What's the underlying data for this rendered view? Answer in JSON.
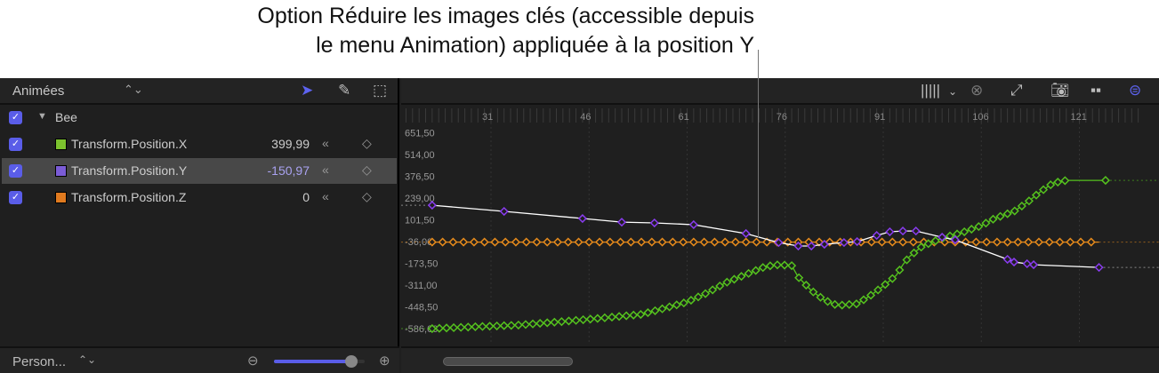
{
  "callout": {
    "line1": "Option Réduire les images clés (accessible depuis",
    "line2": "le menu Animation) appliquée à la position Y"
  },
  "left_panel": {
    "filter": "Animées",
    "tools": [
      "arrow-icon",
      "pencil-icon",
      "marquee-add-icon"
    ],
    "group": {
      "label": "Bee",
      "checked": true
    },
    "params": [
      {
        "label": "Transform.Position.X",
        "value": "399,99",
        "color": "#7cc22e",
        "checked": true,
        "selected": false
      },
      {
        "label": "Transform.Position.Y",
        "value": "-150,97",
        "color": "#7b5cd6",
        "checked": true,
        "selected": true
      },
      {
        "label": "Transform.Position.Z",
        "value": "0",
        "color": "#e07a1f",
        "checked": true,
        "selected": false
      }
    ],
    "footer": {
      "preset": "Person...",
      "zoom_slider": 0.85
    }
  },
  "graph_toolbar": [
    "waveform-icon",
    "chevron-down-icon",
    "clear-icon",
    "curve-fit-icon",
    "snapshot-icon",
    "split-view-icon",
    "zoom-fit-icon"
  ],
  "chart_data": {
    "type": "line",
    "x_ticks": [
      31,
      46,
      61,
      76,
      91,
      106,
      121
    ],
    "y_ticks": [
      "651,50",
      "514,00",
      "376,50",
      "239,00",
      "101,50",
      "-36,00",
      "-173,50",
      "-311,00",
      "-448,50",
      "-586,00"
    ],
    "y_tick_values": [
      651.5,
      514,
      376.5,
      239,
      101.5,
      -36,
      -173.5,
      -311,
      -448.5,
      -586
    ],
    "series": [
      {
        "id": "x",
        "color": "#55c21e",
        "points": [
          [
            22,
            -547
          ],
          [
            28,
            -536
          ],
          [
            35,
            -525
          ],
          [
            42,
            -502
          ],
          [
            48,
            -480
          ],
          [
            54,
            -457
          ],
          [
            57,
            -424
          ],
          [
            61,
            -379
          ],
          [
            64,
            -322
          ],
          [
            67,
            -255
          ],
          [
            71,
            -188
          ],
          [
            73,
            -154
          ],
          [
            75,
            -143
          ],
          [
            77,
            -149
          ],
          [
            78,
            -221
          ],
          [
            80,
            -306
          ],
          [
            82,
            -367
          ],
          [
            84,
            -401
          ],
          [
            87,
            -390
          ],
          [
            89,
            -339
          ],
          [
            91,
            -278
          ],
          [
            93,
            -210
          ],
          [
            94,
            -143
          ],
          [
            95,
            -92
          ],
          [
            97,
            -25
          ],
          [
            100,
            25
          ],
          [
            103,
            59
          ],
          [
            106,
            104
          ],
          [
            108,
            149
          ],
          [
            111,
            194
          ],
          [
            113,
            250
          ],
          [
            115,
            317
          ],
          [
            117,
            373
          ],
          [
            119,
            390
          ],
          [
            121,
            390
          ],
          [
            125,
            390
          ]
        ]
      },
      {
        "id": "y",
        "color": "#ffffff",
        "key_color": "#8a3cf0",
        "points": [
          [
            22,
            233
          ],
          [
            33,
            194
          ],
          [
            45,
            149
          ],
          [
            51,
            126
          ],
          [
            56,
            121
          ],
          [
            62,
            110
          ],
          [
            70,
            54
          ],
          [
            75,
            -3
          ],
          [
            78,
            -25
          ],
          [
            80,
            -25
          ],
          [
            82,
            -14
          ],
          [
            85,
            -3
          ],
          [
            87,
            3
          ],
          [
            90,
            42
          ],
          [
            92,
            65
          ],
          [
            94,
            70
          ],
          [
            96,
            70
          ],
          [
            100,
            31
          ],
          [
            102,
            14
          ],
          [
            110,
            -109
          ],
          [
            111,
            -126
          ],
          [
            113,
            -137
          ],
          [
            114,
            -143
          ],
          [
            124,
            -160
          ]
        ]
      },
      {
        "id": "z",
        "color": "#e58a1c",
        "value": 0,
        "frame_range": [
          22,
          124
        ]
      }
    ]
  },
  "timeline_scroll": {
    "label": ""
  }
}
